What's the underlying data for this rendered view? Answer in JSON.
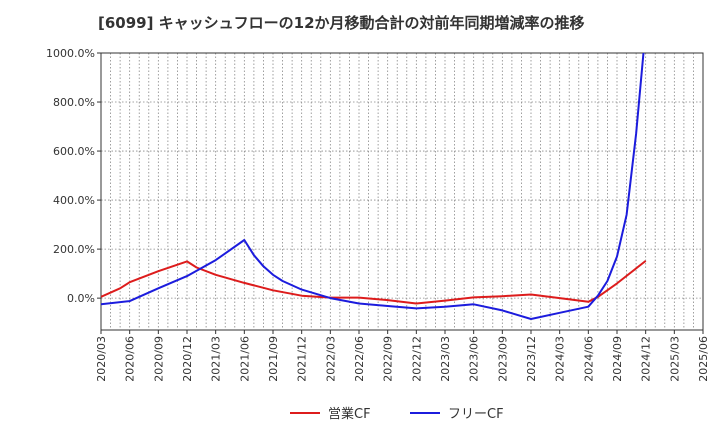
{
  "chart_data": {
    "type": "line",
    "title": "[6099]  キャッシュフローの12か月移動合計の対前年同期増減率の推移",
    "xlabel": "",
    "ylabel": "",
    "ylim": [
      -130,
      1000
    ],
    "yticks": [
      0,
      200,
      400,
      600,
      800,
      1000
    ],
    "ytick_labels": [
      "0.0%",
      "200.0%",
      "400.0%",
      "600.0%",
      "800.0%",
      "1000.0%"
    ],
    "xlim": [
      "2020-03",
      "2025-06"
    ],
    "xtick_labels": [
      "2020/03",
      "2020/06",
      "2020/09",
      "2020/12",
      "2021/03",
      "2021/06",
      "2021/09",
      "2021/12",
      "2022/03",
      "2022/06",
      "2022/09",
      "2022/12",
      "2023/03",
      "2023/06",
      "2023/09",
      "2023/12",
      "2024/03",
      "2024/06",
      "2024/09",
      "2024/12",
      "2025/03",
      "2025/06"
    ],
    "grid": true,
    "legend_position": "bottom-center",
    "series": [
      {
        "name": "営業CF",
        "color": "#dd1c1c",
        "points": [
          [
            "2020-03",
            5
          ],
          [
            "2020-05",
            40
          ],
          [
            "2020-06",
            65
          ],
          [
            "2020-09",
            110
          ],
          [
            "2020-12",
            150
          ],
          [
            "2021-01",
            125
          ],
          [
            "2021-03",
            95
          ],
          [
            "2021-06",
            62
          ],
          [
            "2021-09",
            32
          ],
          [
            "2021-12",
            10
          ],
          [
            "2022-03",
            2
          ],
          [
            "2022-06",
            2
          ],
          [
            "2022-09",
            -8
          ],
          [
            "2022-12",
            -22
          ],
          [
            "2023-03",
            -10
          ],
          [
            "2023-06",
            3
          ],
          [
            "2023-09",
            8
          ],
          [
            "2023-12",
            15
          ],
          [
            "2024-03",
            0
          ],
          [
            "2024-06",
            -15
          ],
          [
            "2024-07",
            5
          ],
          [
            "2024-09",
            60
          ],
          [
            "2024-12",
            152
          ]
        ]
      },
      {
        "name": "フリーCF",
        "color": "#1c1cdd",
        "points": [
          [
            "2020-03",
            -25
          ],
          [
            "2020-06",
            -12
          ],
          [
            "2020-09",
            40
          ],
          [
            "2020-12",
            90
          ],
          [
            "2021-03",
            155
          ],
          [
            "2021-06",
            237
          ],
          [
            "2021-07",
            175
          ],
          [
            "2021-08",
            130
          ],
          [
            "2021-09",
            95
          ],
          [
            "2021-10",
            70
          ],
          [
            "2021-12",
            35
          ],
          [
            "2022-03",
            0
          ],
          [
            "2022-06",
            -22
          ],
          [
            "2022-09",
            -32
          ],
          [
            "2022-12",
            -42
          ],
          [
            "2023-03",
            -35
          ],
          [
            "2023-06",
            -25
          ],
          [
            "2023-09",
            -50
          ],
          [
            "2023-12",
            -85
          ],
          [
            "2024-03",
            -60
          ],
          [
            "2024-06",
            -35
          ],
          [
            "2024-07",
            10
          ],
          [
            "2024-08",
            70
          ],
          [
            "2024-09",
            170
          ],
          [
            "2024-10",
            340
          ],
          [
            "2024-11",
            670
          ],
          [
            "2024-12",
            1100
          ]
        ]
      }
    ]
  }
}
